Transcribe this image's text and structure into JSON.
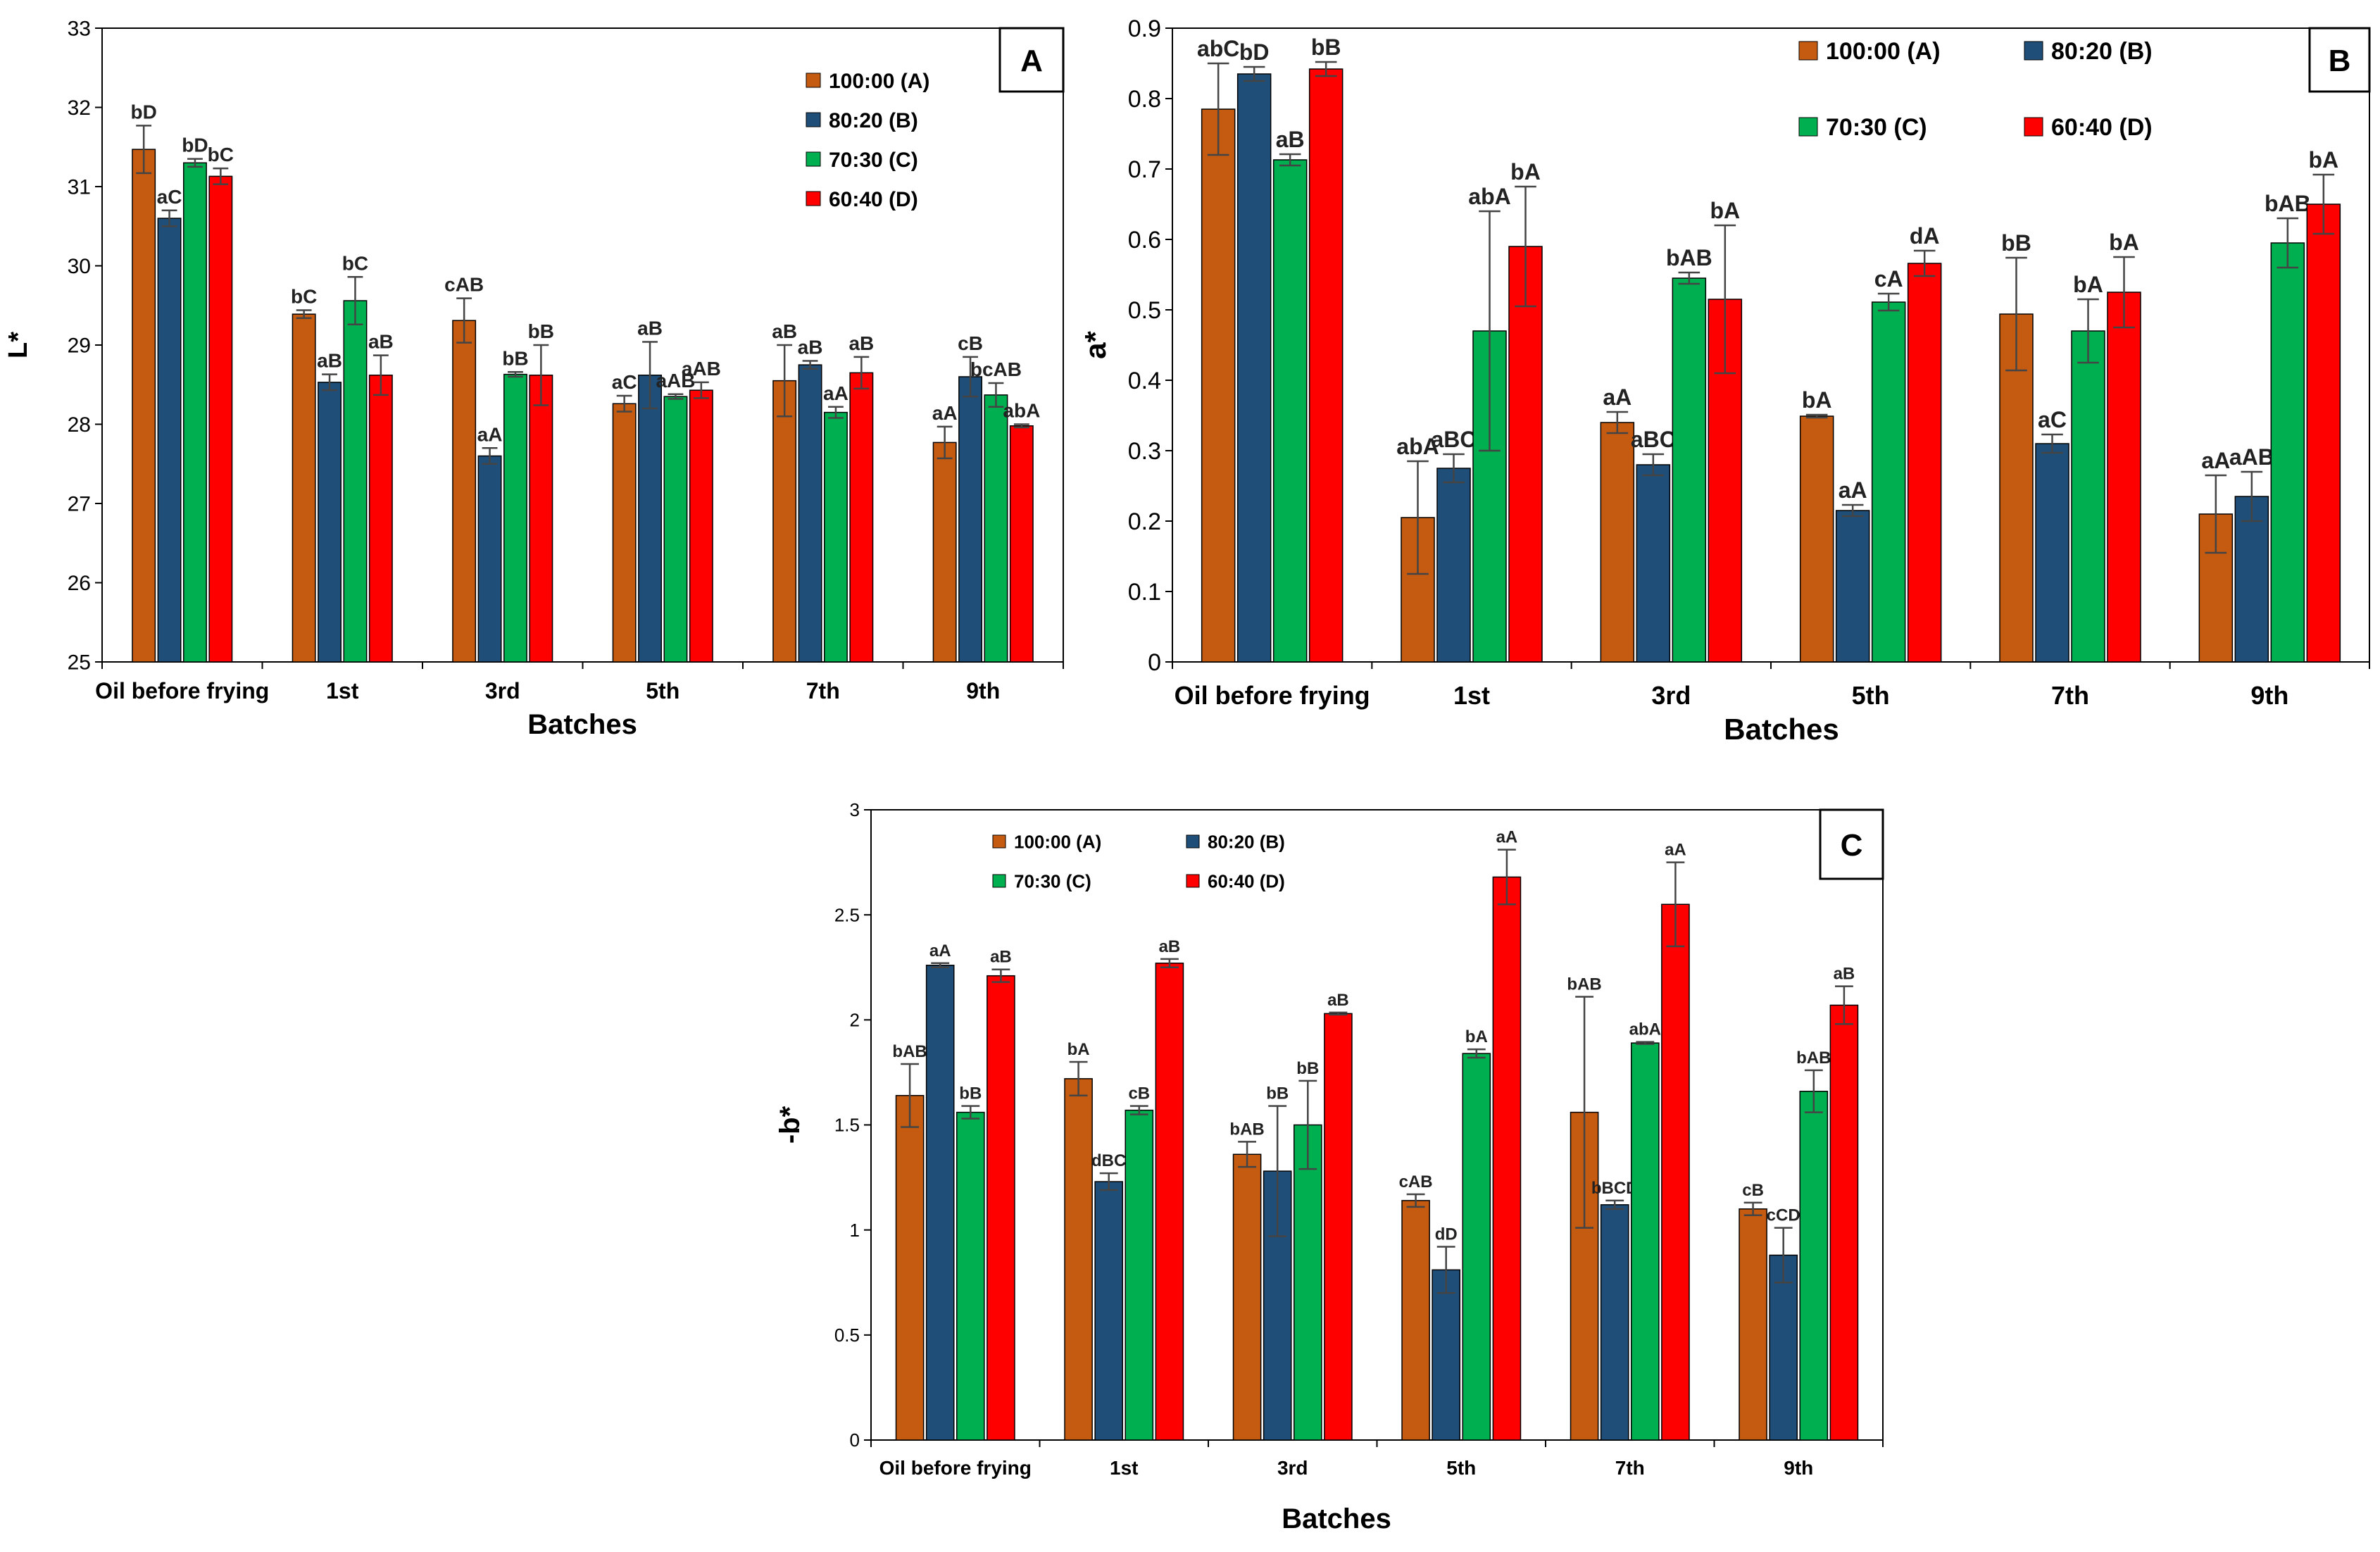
{
  "chart_data": [
    {
      "panel": "A",
      "type": "bar",
      "panel_letter": "A",
      "xlabel": "Batches",
      "ylabel": "L*",
      "ylim": [
        25,
        33
      ],
      "yticks": [
        25,
        26,
        27,
        28,
        29,
        30,
        31,
        32,
        33
      ],
      "categories": [
        "Oil before frying",
        "1st",
        "3rd",
        "5th",
        "7th",
        "9th"
      ],
      "series": [
        {
          "name": "100:00 (A)",
          "color": "#c55a11",
          "values": [
            31.47,
            29.39,
            29.31,
            28.26,
            28.55,
            27.77
          ],
          "errors": [
            0.3,
            0.05,
            0.28,
            0.1,
            0.45,
            0.2
          ],
          "labels": [
            "bD",
            "bC",
            "cAB",
            "aC",
            "aB",
            "aA"
          ]
        },
        {
          "name": "80:20 (B)",
          "color": "#1f4e79",
          "values": [
            30.6,
            28.53,
            27.6,
            28.62,
            28.75,
            28.6
          ],
          "errors": [
            0.1,
            0.1,
            0.1,
            0.42,
            0.05,
            0.25
          ],
          "labels": [
            "aC",
            "aB",
            "aA",
            "aB",
            "aB",
            "cB"
          ]
        },
        {
          "name": "70:30 (C)",
          "color": "#00b050",
          "values": [
            31.3,
            29.56,
            28.63,
            28.35,
            28.15,
            28.37
          ],
          "errors": [
            0.05,
            0.3,
            0.03,
            0.03,
            0.07,
            0.15
          ],
          "labels": [
            "bD",
            "bC",
            "bB",
            "aAB",
            "aA",
            "bcAB"
          ]
        },
        {
          "name": "60:40 (D)",
          "color": "#ff0000",
          "values": [
            31.13,
            28.62,
            28.62,
            28.43,
            28.65,
            27.98
          ],
          "errors": [
            0.1,
            0.25,
            0.38,
            0.1,
            0.2,
            0.02
          ],
          "labels": [
            "bC",
            "aB",
            "bB",
            "aAB",
            "aB",
            "abA"
          ]
        }
      ]
    },
    {
      "panel": "B",
      "type": "bar",
      "panel_letter": "B",
      "xlabel": "Batches",
      "ylabel": "a*",
      "ylim": [
        0,
        0.9
      ],
      "yticks": [
        "0",
        "0.1",
        "0.2",
        "0.3",
        "0.4",
        "0.5",
        "0.6",
        "0.7",
        "0.8",
        "0.9"
      ],
      "categories": [
        "Oil before frying",
        "1st",
        "3rd",
        "5th",
        "7th",
        "9th"
      ],
      "series": [
        {
          "name": "100:00 (A)",
          "color": "#c55a11",
          "values": [
            0.785,
            0.205,
            0.34,
            0.349,
            0.494,
            0.21
          ],
          "errors": [
            0.065,
            0.08,
            0.015,
            0.002,
            0.08,
            0.055
          ],
          "labels": [
            "abC",
            "abA",
            "aA",
            "bA",
            "bB",
            "aA"
          ]
        },
        {
          "name": "80:20 (B)",
          "color": "#1f4e79",
          "values": [
            0.835,
            0.275,
            0.28,
            0.215,
            0.31,
            0.235
          ],
          "errors": [
            0.01,
            0.02,
            0.015,
            0.008,
            0.013,
            0.035
          ],
          "labels": [
            "bD",
            "aBC",
            "aBC",
            "aA",
            "aC",
            "aAB"
          ]
        },
        {
          "name": "70:30 (C)",
          "color": "#00b050",
          "values": [
            0.713,
            0.47,
            0.545,
            0.511,
            0.47,
            0.595
          ],
          "errors": [
            0.008,
            0.17,
            0.008,
            0.012,
            0.045,
            0.035
          ],
          "labels": [
            "aB",
            "abA",
            "bAB",
            "cA",
            "bA",
            "bAB"
          ]
        },
        {
          "name": "60:40 (D)",
          "color": "#ff0000",
          "values": [
            0.842,
            0.59,
            0.515,
            0.566,
            0.525,
            0.65
          ],
          "errors": [
            0.01,
            0.085,
            0.105,
            0.018,
            0.05,
            0.042
          ],
          "labels": [
            "bB",
            "bA",
            "bA",
            "dA",
            "bA",
            "bA"
          ]
        }
      ]
    },
    {
      "panel": "C",
      "type": "bar",
      "panel_letter": "C",
      "xlabel": "Batches",
      "ylabel": "-b*",
      "ylim": [
        0,
        3
      ],
      "yticks": [
        "0",
        "0.5",
        "1",
        "1.5",
        "2",
        "2.5",
        "3"
      ],
      "categories": [
        "Oil before frying",
        "1st",
        "3rd",
        "5th",
        "7th",
        "9th"
      ],
      "series": [
        {
          "name": "100:00 (A)",
          "color": "#c55a11",
          "values": [
            1.64,
            1.72,
            1.36,
            1.14,
            1.56,
            1.1
          ],
          "errors": [
            0.15,
            0.08,
            0.06,
            0.03,
            0.55,
            0.03
          ],
          "labels": [
            "bAB",
            "bA",
            "bAB",
            "cAB",
            "bAB",
            "cB"
          ]
        },
        {
          "name": "80:20 (B)",
          "color": "#1f4e79",
          "values": [
            2.26,
            1.23,
            1.28,
            0.81,
            1.12,
            0.88
          ],
          "errors": [
            0.01,
            0.04,
            0.31,
            0.11,
            0.02,
            0.13
          ],
          "labels": [
            "aA",
            "dBC",
            "bB",
            "dD",
            "bBCD",
            "cCD"
          ]
        },
        {
          "name": "70:30 (C)",
          "color": "#00b050",
          "values": [
            1.56,
            1.57,
            1.5,
            1.84,
            1.89,
            1.66
          ],
          "errors": [
            0.03,
            0.02,
            0.21,
            0.02,
            0.005,
            0.1
          ],
          "labels": [
            "bB",
            "cB",
            "bB",
            "bA",
            "abA",
            "bAB"
          ]
        },
        {
          "name": "60:40 (D)",
          "color": "#ff0000",
          "values": [
            2.21,
            2.27,
            2.03,
            2.68,
            2.55,
            2.07
          ],
          "errors": [
            0.03,
            0.02,
            0.005,
            0.13,
            0.2,
            0.09
          ],
          "labels": [
            "aB",
            "aB",
            "aB",
            "aA",
            "aA",
            "aB"
          ]
        }
      ]
    }
  ]
}
